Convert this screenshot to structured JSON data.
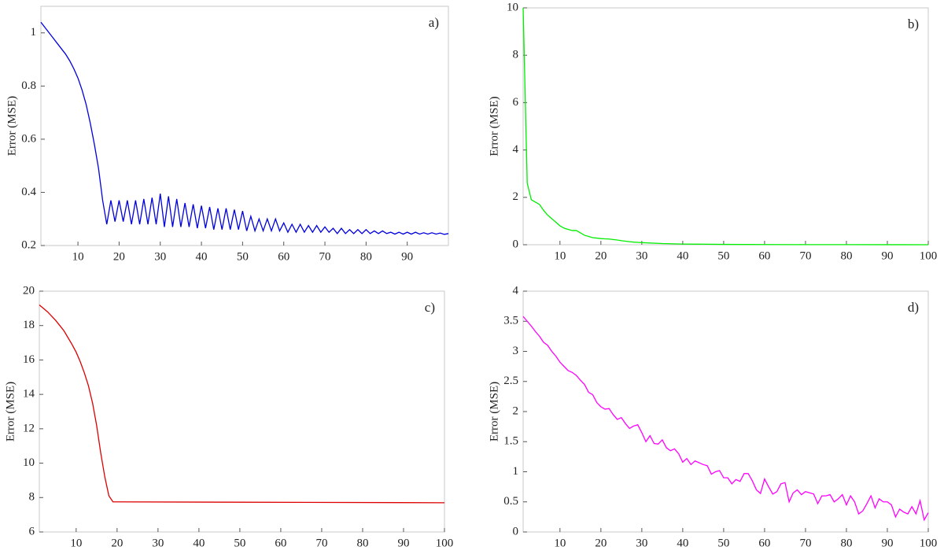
{
  "chart_data": [
    {
      "type": "line",
      "annotation": "a)",
      "ylabel": "Error (MSE)",
      "color": "#0000dd",
      "xlim": [
        1,
        100
      ],
      "ylim": [
        0.2,
        1.1
      ],
      "xticks": [
        10,
        20,
        30,
        40,
        50,
        60,
        70,
        80,
        90
      ],
      "yticks": [
        0.2,
        0.4,
        0.6,
        0.8,
        1
      ],
      "x": [
        1,
        2,
        3,
        4,
        5,
        6,
        7,
        8,
        9,
        10,
        11,
        12,
        13,
        14,
        15,
        16,
        17,
        18,
        19,
        20,
        21,
        22,
        23,
        24,
        25,
        26,
        27,
        28,
        29,
        30,
        31,
        32,
        33,
        34,
        35,
        36,
        37,
        38,
        39,
        40,
        41,
        42,
        43,
        44,
        45,
        46,
        47,
        48,
        49,
        50,
        51,
        52,
        53,
        54,
        55,
        56,
        57,
        58,
        59,
        60,
        61,
        62,
        63,
        64,
        65,
        66,
        67,
        68,
        69,
        70,
        71,
        72,
        73,
        74,
        75,
        76,
        77,
        78,
        79,
        80,
        81,
        82,
        83,
        84,
        85,
        86,
        87,
        88,
        89,
        90,
        91,
        92,
        93,
        94,
        95,
        96,
        97,
        98,
        99,
        100
      ],
      "values": [
        1.04,
        1.02,
        1.0,
        0.98,
        0.96,
        0.94,
        0.92,
        0.895,
        0.865,
        0.83,
        0.785,
        0.73,
        0.66,
        0.58,
        0.49,
        0.37,
        0.28,
        0.37,
        0.29,
        0.37,
        0.29,
        0.37,
        0.28,
        0.37,
        0.28,
        0.375,
        0.28,
        0.38,
        0.28,
        0.395,
        0.27,
        0.385,
        0.27,
        0.375,
        0.27,
        0.36,
        0.27,
        0.355,
        0.265,
        0.35,
        0.265,
        0.345,
        0.26,
        0.34,
        0.26,
        0.34,
        0.26,
        0.335,
        0.26,
        0.33,
        0.255,
        0.31,
        0.255,
        0.3,
        0.255,
        0.3,
        0.255,
        0.3,
        0.255,
        0.285,
        0.25,
        0.28,
        0.25,
        0.28,
        0.25,
        0.275,
        0.25,
        0.275,
        0.25,
        0.27,
        0.25,
        0.265,
        0.245,
        0.265,
        0.245,
        0.26,
        0.245,
        0.26,
        0.245,
        0.26,
        0.245,
        0.255,
        0.245,
        0.255,
        0.245,
        0.25,
        0.243,
        0.25,
        0.243,
        0.25,
        0.243,
        0.25,
        0.243,
        0.248,
        0.243,
        0.248,
        0.243,
        0.247,
        0.242,
        0.245
      ]
    },
    {
      "type": "line",
      "annotation": "b)",
      "ylabel": "Error (MSE)",
      "color": "#00ee00",
      "xlim": [
        1,
        100
      ],
      "ylim": [
        0,
        10
      ],
      "xticks": [
        10,
        20,
        30,
        40,
        50,
        60,
        70,
        80,
        90,
        100
      ],
      "yticks": [
        0,
        2,
        4,
        6,
        8,
        10
      ],
      "x": [
        1,
        2,
        3,
        4,
        5,
        6,
        7,
        8,
        9,
        10,
        11,
        12,
        13,
        14,
        15,
        16,
        17,
        18,
        19,
        20,
        21,
        22,
        23,
        24,
        25,
        26,
        27,
        28,
        29,
        30,
        35,
        40,
        50,
        60,
        70,
        80,
        90,
        100
      ],
      "values": [
        10,
        2.6,
        1.9,
        1.8,
        1.7,
        1.45,
        1.25,
        1.1,
        0.95,
        0.8,
        0.7,
        0.65,
        0.6,
        0.6,
        0.5,
        0.4,
        0.35,
        0.3,
        0.28,
        0.26,
        0.25,
        0.24,
        0.22,
        0.2,
        0.17,
        0.15,
        0.13,
        0.11,
        0.1,
        0.09,
        0.05,
        0.03,
        0.015,
        0.008,
        0.005,
        0.003,
        0.002,
        0.001
      ]
    },
    {
      "type": "line",
      "annotation": "c)",
      "ylabel": "Error (MSE)",
      "color": "#dd0000",
      "xlim": [
        1,
        100
      ],
      "ylim": [
        6,
        20
      ],
      "xticks": [
        10,
        20,
        30,
        40,
        50,
        60,
        70,
        80,
        90,
        100
      ],
      "yticks": [
        6,
        8,
        10,
        12,
        14,
        16,
        18,
        20
      ],
      "x": [
        1,
        2,
        3,
        4,
        5,
        6,
        7,
        8,
        9,
        10,
        11,
        12,
        13,
        14,
        15,
        16,
        17,
        18,
        19,
        20,
        50,
        100
      ],
      "values": [
        19.2,
        19.0,
        18.8,
        18.55,
        18.3,
        18.0,
        17.7,
        17.3,
        16.9,
        16.45,
        15.9,
        15.25,
        14.5,
        13.5,
        12.2,
        10.6,
        9.2,
        8.1,
        7.75,
        7.75,
        7.73,
        7.7
      ]
    },
    {
      "type": "line",
      "annotation": "d)",
      "ylabel": "Error (MSE)",
      "color": "#ff00ff",
      "xlim": [
        1,
        100
      ],
      "ylim": [
        0,
        4
      ],
      "xticks": [
        10,
        20,
        30,
        40,
        50,
        60,
        70,
        80,
        90,
        100
      ],
      "yticks": [
        0,
        0.5,
        1,
        1.5,
        2,
        2.5,
        3,
        3.5,
        4
      ],
      "x": [
        1,
        2,
        3,
        4,
        5,
        6,
        7,
        8,
        9,
        10,
        11,
        12,
        13,
        14,
        15,
        16,
        17,
        18,
        19,
        20,
        21,
        22,
        23,
        24,
        25,
        26,
        27,
        28,
        29,
        30,
        31,
        32,
        33,
        34,
        35,
        36,
        37,
        38,
        39,
        40,
        41,
        42,
        43,
        44,
        45,
        46,
        47,
        48,
        49,
        50,
        51,
        52,
        53,
        54,
        55,
        56,
        57,
        58,
        59,
        60,
        61,
        62,
        63,
        64,
        65,
        66,
        67,
        68,
        69,
        70,
        71,
        72,
        73,
        74,
        75,
        76,
        77,
        78,
        79,
        80,
        81,
        82,
        83,
        84,
        85,
        86,
        87,
        88,
        89,
        90,
        91,
        92,
        93,
        94,
        95,
        96,
        97,
        98,
        99,
        100
      ],
      "values": [
        3.58,
        3.5,
        3.42,
        3.33,
        3.25,
        3.15,
        3.1,
        3.0,
        2.92,
        2.82,
        2.75,
        2.68,
        2.65,
        2.6,
        2.52,
        2.45,
        2.32,
        2.28,
        2.15,
        2.08,
        2.04,
        2.05,
        1.95,
        1.87,
        1.9,
        1.8,
        1.72,
        1.76,
        1.78,
        1.65,
        1.5,
        1.6,
        1.47,
        1.46,
        1.53,
        1.4,
        1.35,
        1.38,
        1.3,
        1.16,
        1.22,
        1.12,
        1.18,
        1.15,
        1.12,
        1.1,
        0.96,
        1.0,
        1.02,
        0.9,
        0.9,
        0.8,
        0.87,
        0.84,
        0.97,
        0.97,
        0.85,
        0.7,
        0.64,
        0.88,
        0.75,
        0.63,
        0.67,
        0.8,
        0.82,
        0.5,
        0.65,
        0.7,
        0.62,
        0.67,
        0.65,
        0.63,
        0.47,
        0.6,
        0.6,
        0.62,
        0.5,
        0.55,
        0.62,
        0.45,
        0.6,
        0.5,
        0.3,
        0.35,
        0.47,
        0.6,
        0.4,
        0.55,
        0.5,
        0.5,
        0.45,
        0.25,
        0.38,
        0.33,
        0.3,
        0.42,
        0.3,
        0.52,
        0.2,
        0.32
      ]
    }
  ]
}
